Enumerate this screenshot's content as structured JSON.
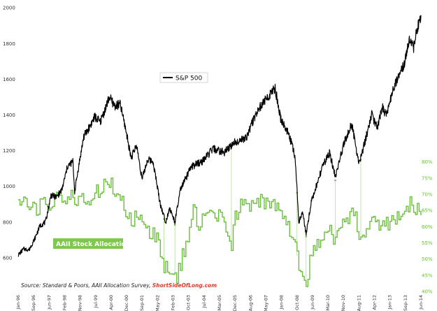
{
  "chart_data": {
    "type": "line",
    "title": "",
    "xlabel": "",
    "ylabel": "",
    "x_range": [
      "1996-01",
      "2014-06"
    ],
    "x_tick_labels": [
      "Jan-96",
      "Sep-96",
      "Jun-97",
      "Feb-98",
      "Nov-98",
      "Jul-99",
      "Apr-00",
      "Dec-00",
      "Sep-01",
      "May-02",
      "Feb-03",
      "Oct-03",
      "Jul-04",
      "Mar-05",
      "Dec-05",
      "Aug-06",
      "May-07",
      "Jan-08",
      "Oct-08",
      "Jun-09",
      "Mar-10",
      "Nov-10",
      "Aug-11",
      "Apr-12",
      "Jan-13",
      "Sep-13",
      "Jun-14"
    ],
    "left_axis": {
      "ylim": [
        400,
        2000
      ],
      "ticks": [
        600,
        800,
        1000,
        1200,
        1400,
        1600,
        1800,
        2000
      ],
      "tick_labels": [
        "600",
        "800",
        "1000",
        "1200",
        "1400",
        "1600",
        "1800",
        "2000"
      ]
    },
    "right_axis": {
      "ylim": [
        40,
        80
      ],
      "ticks": [
        40,
        45,
        50,
        55,
        60,
        65,
        70,
        75,
        80
      ],
      "tick_labels": [
        "40%",
        "45%",
        "50%",
        "55%",
        "60%",
        "65%",
        "70%",
        "75%",
        "80%"
      ]
    },
    "grid": false,
    "legend_placement": "inline",
    "series": [
      {
        "name": "S&P 500",
        "axis": "left",
        "color": "#000000",
        "points": [
          [
            "1996-01",
            615
          ],
          [
            "1996-04",
            650
          ],
          [
            "1996-07",
            645
          ],
          [
            "1996-10",
            705
          ],
          [
            "1997-01",
            780
          ],
          [
            "1997-04",
            800
          ],
          [
            "1997-07",
            950
          ],
          [
            "1997-10",
            940
          ],
          [
            "1998-01",
            980
          ],
          [
            "1998-04",
            1110
          ],
          [
            "1998-07",
            1140
          ],
          [
            "1998-08",
            970
          ],
          [
            "1998-10",
            1100
          ],
          [
            "1999-01",
            1280
          ],
          [
            "1999-04",
            1330
          ],
          [
            "1999-07",
            1390
          ],
          [
            "1999-10",
            1360
          ],
          [
            "2000-01",
            1440
          ],
          [
            "2000-03",
            1500
          ],
          [
            "2000-06",
            1450
          ],
          [
            "2000-09",
            1460
          ],
          [
            "2000-12",
            1320
          ],
          [
            "2001-03",
            1160
          ],
          [
            "2001-06",
            1230
          ],
          [
            "2001-09",
            1040
          ],
          [
            "2001-12",
            1150
          ],
          [
            "2002-03",
            1140
          ],
          [
            "2002-07",
            900
          ],
          [
            "2002-10",
            800
          ],
          [
            "2002-12",
            880
          ],
          [
            "2003-03",
            800
          ],
          [
            "2003-06",
            980
          ],
          [
            "2003-12",
            1110
          ],
          [
            "2004-06",
            1140
          ],
          [
            "2004-12",
            1210
          ],
          [
            "2005-06",
            1190
          ],
          [
            "2005-12",
            1250
          ],
          [
            "2006-06",
            1270
          ],
          [
            "2006-12",
            1420
          ],
          [
            "2007-06",
            1500
          ],
          [
            "2007-10",
            1550
          ],
          [
            "2008-01",
            1380
          ],
          [
            "2008-06",
            1280
          ],
          [
            "2008-09",
            1160
          ],
          [
            "2008-11",
            800
          ],
          [
            "2009-01",
            860
          ],
          [
            "2009-03",
            735
          ],
          [
            "2009-06",
            920
          ],
          [
            "2009-12",
            1110
          ],
          [
            "2010-04",
            1190
          ],
          [
            "2010-07",
            1050
          ],
          [
            "2010-12",
            1250
          ],
          [
            "2011-04",
            1350
          ],
          [
            "2011-08",
            1130
          ],
          [
            "2011-10",
            1200
          ],
          [
            "2012-03",
            1400
          ],
          [
            "2012-06",
            1330
          ],
          [
            "2012-09",
            1440
          ],
          [
            "2012-11",
            1390
          ],
          [
            "2013-03",
            1560
          ],
          [
            "2013-06",
            1610
          ],
          [
            "2013-09",
            1690
          ],
          [
            "2013-12",
            1840
          ],
          [
            "2014-02",
            1780
          ],
          [
            "2014-04",
            1880
          ],
          [
            "2014-06",
            1960
          ]
        ]
      },
      {
        "name": "AAII Stock Allocations",
        "axis": "right",
        "color": "#6abf3a",
        "points": [
          [
            "1996-01",
            66
          ],
          [
            "1996-06",
            67
          ],
          [
            "1996-10",
            65
          ],
          [
            "1997-03",
            68
          ],
          [
            "1997-06",
            66
          ],
          [
            "1997-09",
            68
          ],
          [
            "1998-01",
            70
          ],
          [
            "1998-06",
            69
          ],
          [
            "1998-10",
            67
          ],
          [
            "1999-01",
            69
          ],
          [
            "1999-04",
            68
          ],
          [
            "1999-07",
            71
          ],
          [
            "1999-09",
            70
          ],
          [
            "1999-12",
            73
          ],
          [
            "2000-03",
            74
          ],
          [
            "2000-06",
            70
          ],
          [
            "2000-09",
            69
          ],
          [
            "2000-12",
            64
          ],
          [
            "2001-03",
            62
          ],
          [
            "2001-06",
            63
          ],
          [
            "2001-09",
            60
          ],
          [
            "2001-12",
            58
          ],
          [
            "2002-03",
            59
          ],
          [
            "2002-06",
            54
          ],
          [
            "2002-09",
            48
          ],
          [
            "2002-11",
            46
          ],
          [
            "2003-01",
            47
          ],
          [
            "2003-04",
            45
          ],
          [
            "2003-08",
            53
          ],
          [
            "2003-11",
            60
          ],
          [
            "2004-01",
            65
          ],
          [
            "2004-04",
            61
          ],
          [
            "2004-08",
            66
          ],
          [
            "2004-12",
            62
          ],
          [
            "2005-03",
            65
          ],
          [
            "2005-06",
            60
          ],
          [
            "2005-10",
            54
          ],
          [
            "2005-12",
            64
          ],
          [
            "2006-04",
            67
          ],
          [
            "2006-08",
            65
          ],
          [
            "2006-10",
            69
          ],
          [
            "2007-02",
            68
          ],
          [
            "2007-06",
            68
          ],
          [
            "2007-10",
            66
          ],
          [
            "2008-01",
            63
          ],
          [
            "2008-05",
            60
          ],
          [
            "2008-09",
            55
          ],
          [
            "2008-11",
            47
          ],
          [
            "2009-01",
            46
          ],
          [
            "2009-03",
            42
          ],
          [
            "2009-06",
            52
          ],
          [
            "2009-10",
            56
          ],
          [
            "2010-01",
            58
          ],
          [
            "2010-04",
            59
          ],
          [
            "2010-07",
            56
          ],
          [
            "2010-12",
            61
          ],
          [
            "2011-03",
            64
          ],
          [
            "2011-06",
            63
          ],
          [
            "2011-09",
            56
          ],
          [
            "2011-12",
            58
          ],
          [
            "2012-03",
            61
          ],
          [
            "2012-06",
            60
          ],
          [
            "2012-09",
            60
          ],
          [
            "2012-12",
            61
          ],
          [
            "2013-03",
            62
          ],
          [
            "2013-06",
            64
          ],
          [
            "2013-09",
            66
          ],
          [
            "2013-12",
            67
          ],
          [
            "2014-03",
            66
          ],
          [
            "2014-06",
            66
          ]
        ]
      }
    ],
    "annotation_dates": [
      "2002-09",
      "2003-03",
      "2005-10",
      "2008-10",
      "2009-03",
      "2010-07",
      "2011-09"
    ]
  },
  "labels": {
    "sp_legend": "S&P 500",
    "aaii_legend": "AAII Stock Allocations",
    "source_prefix": "Source: Standard & Poors, AAII Allocation Survey, ",
    "source_brand": "ShortSideOfLong.com"
  },
  "colors": {
    "sp_line": "#000000",
    "aaii_line": "#6abf3a",
    "aaii_label_bg": "#7ec850",
    "annotation_line": "#a8d98a",
    "brand_text": "#e03a2a"
  }
}
